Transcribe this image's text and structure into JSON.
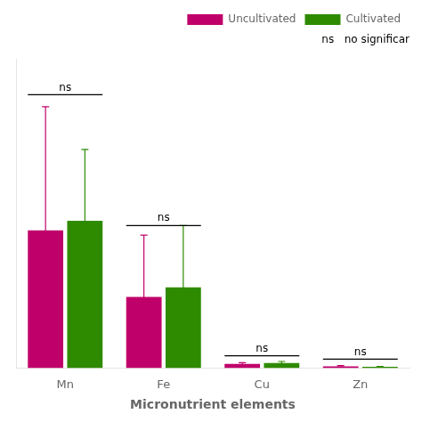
{
  "chart_data": {
    "type": "bar",
    "xlabel": "Micronutrient elements",
    "categories": [
      "Mn",
      "Fe",
      "Cu",
      "Zn"
    ],
    "series": [
      {
        "name": "Uncultivated",
        "color": "#C0006A",
        "values": [
          58,
          30,
          1.8,
          0.8
        ],
        "errors": [
          52,
          26,
          0.5,
          0.35
        ]
      },
      {
        "name": "Cultivated",
        "color": "#2E8B00",
        "values": [
          62,
          34,
          2.2,
          0.6
        ],
        "errors": [
          30,
          26,
          0.65,
          0.15
        ]
      }
    ],
    "ylim": [
      0,
      130
    ],
    "grid": false,
    "legend": "upper right",
    "tick_labels": "x",
    "annotations": [
      {
        "text": "ns",
        "category": "Mn",
        "y": 115
      },
      {
        "text": "ns",
        "category": "Fe",
        "y": 60
      },
      {
        "text": "ns",
        "category": "Cu",
        "y": 5.2
      },
      {
        "text": "ns",
        "category": "Zn",
        "y": 3.8
      },
      {
        "text": "ns   no significar"
      }
    ]
  }
}
